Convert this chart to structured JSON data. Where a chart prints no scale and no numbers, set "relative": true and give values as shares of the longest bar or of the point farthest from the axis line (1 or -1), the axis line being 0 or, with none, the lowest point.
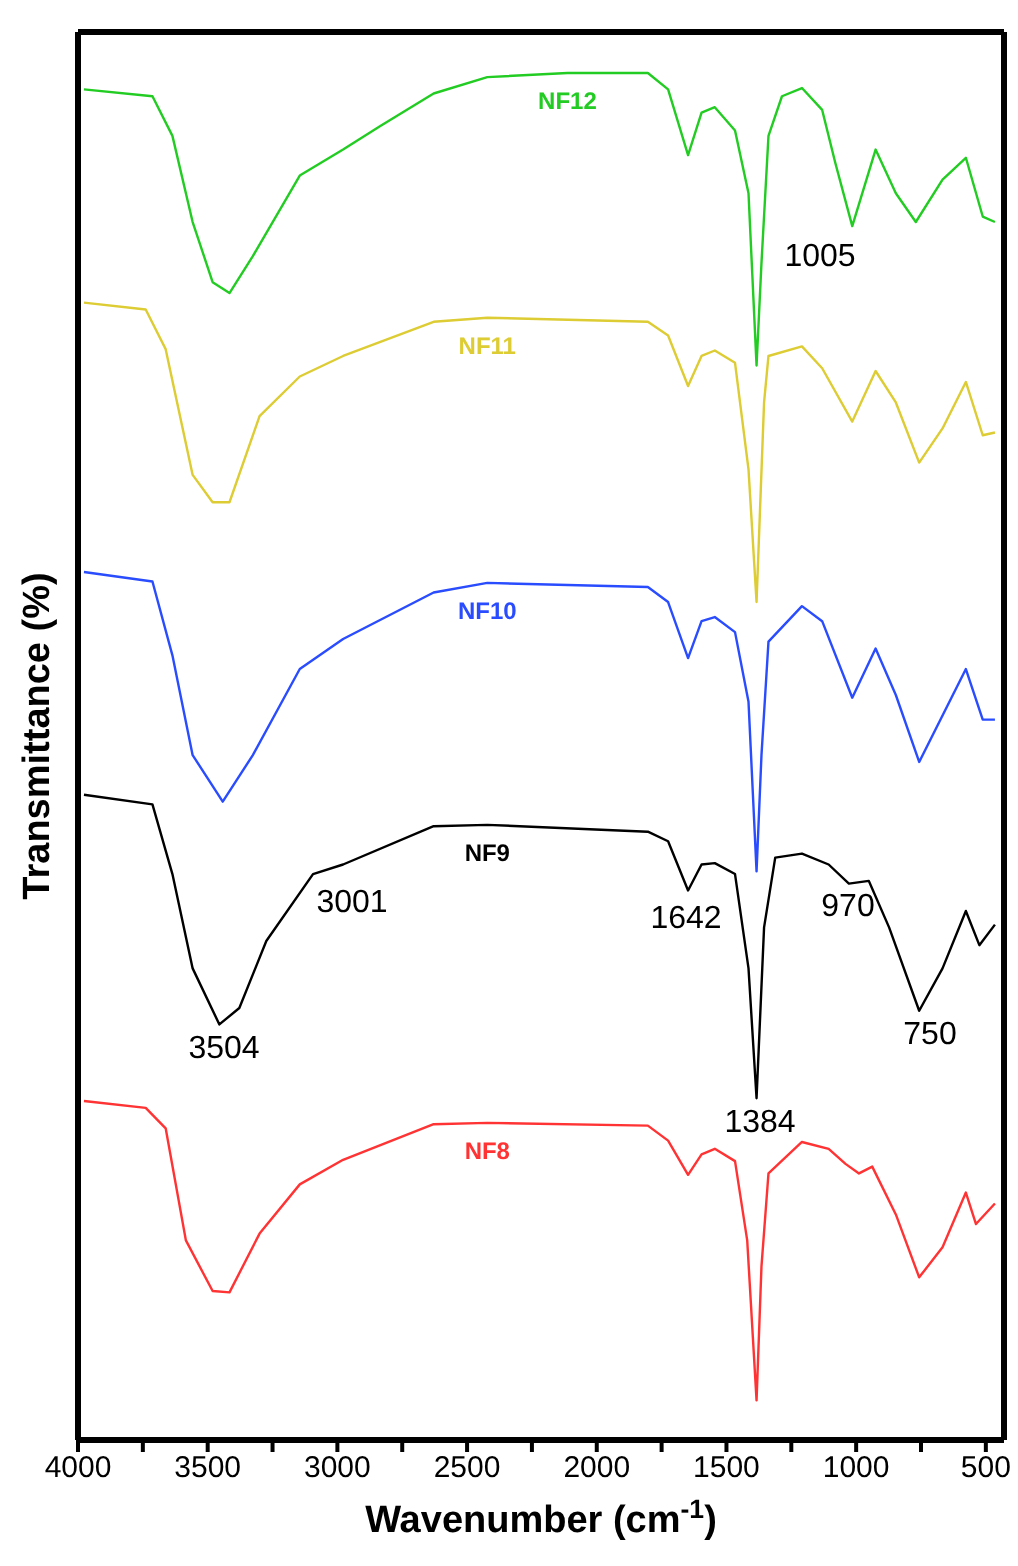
{
  "chart_data": {
    "type": "line",
    "relative": true,
    "xlabel": "Wavenumber (cm$^{-1}$)",
    "ylabel": "Transmittance (%)",
    "xlim": [
      4000,
      430
    ],
    "xticks": [
      4000,
      {
        "value": 3750,
        "label": null
      },
      3500,
      {
        "value": 3250,
        "label": null
      },
      3000,
      {
        "value": 2750,
        "label": null
      },
      2500,
      {
        "value": 2250,
        "label": null
      },
      2000,
      {
        "value": 1750,
        "label": null
      },
      1500,
      {
        "value": 1250,
        "label": null
      },
      1000,
      {
        "value": 750,
        "label": null
      },
      500
    ],
    "marker": "none",
    "line_style": "solid",
    "series": [
      {
        "name": "NF12",
        "color": "#22cc22",
        "x": [
          3977,
          3713,
          3636,
          3558,
          3481,
          3416,
          3326,
          3145,
          2978,
          2836,
          2629,
          2422,
          2113,
          1803,
          1725,
          1648,
          1596,
          1545,
          1467,
          1415,
          1384,
          1365,
          1338,
          1286,
          1209,
          1131,
          1080,
          1015,
          925,
          847,
          770,
          667,
          577,
          512,
          465
        ],
        "values": [
          0.988,
          0.983,
          0.954,
          0.891,
          0.847,
          0.839,
          0.866,
          0.925,
          0.944,
          0.961,
          0.985,
          0.997,
          1.0,
          1.0,
          0.988,
          0.94,
          0.971,
          0.975,
          0.958,
          0.912,
          0.786,
          0.861,
          0.954,
          0.983,
          0.989,
          0.973,
          0.934,
          0.888,
          0.944,
          0.912,
          0.891,
          0.922,
          0.938,
          0.895,
          0.891
        ]
      },
      {
        "name": "NF11",
        "color": "#ddcc33",
        "x": [
          3977,
          3739,
          3662,
          3558,
          3481,
          3416,
          3300,
          3145,
          2978,
          2629,
          2422,
          1803,
          1725,
          1648,
          1596,
          1545,
          1467,
          1415,
          1384,
          1355,
          1338,
          1209,
          1131,
          1015,
          925,
          847,
          757,
          667,
          577,
          512,
          465
        ],
        "values": [
          0.832,
          0.827,
          0.798,
          0.706,
          0.686,
          0.686,
          0.749,
          0.778,
          0.793,
          0.818,
          0.821,
          0.818,
          0.808,
          0.771,
          0.793,
          0.797,
          0.788,
          0.71,
          0.613,
          0.759,
          0.793,
          0.8,
          0.784,
          0.745,
          0.782,
          0.759,
          0.715,
          0.74,
          0.774,
          0.735,
          0.737
        ]
      },
      {
        "name": "NF10",
        "color": "#2a4cff",
        "x": [
          3977,
          3713,
          3636,
          3558,
          3442,
          3326,
          3145,
          2978,
          2629,
          2422,
          1803,
          1725,
          1648,
          1596,
          1545,
          1467,
          1415,
          1384,
          1365,
          1338,
          1209,
          1131,
          1015,
          925,
          847,
          757,
          667,
          577,
          512,
          465
        ],
        "values": [
          0.635,
          0.628,
          0.574,
          0.501,
          0.467,
          0.501,
          0.564,
          0.586,
          0.62,
          0.627,
          0.624,
          0.613,
          0.572,
          0.599,
          0.602,
          0.591,
          0.54,
          0.416,
          0.501,
          0.584,
          0.61,
          0.599,
          0.543,
          0.579,
          0.545,
          0.496,
          0.53,
          0.564,
          0.527,
          0.527
        ]
      },
      {
        "name": "NF9",
        "color": "#000000",
        "x": [
          3977,
          3713,
          3636,
          3558,
          3455,
          3378,
          3274,
          3094,
          2978,
          2629,
          2422,
          1803,
          1725,
          1648,
          1596,
          1545,
          1467,
          1415,
          1384,
          1355,
          1312,
          1209,
          1106,
          1028,
          951,
          873,
          757,
          667,
          577,
          525,
          465
        ],
        "values": [
          0.472,
          0.465,
          0.414,
          0.345,
          0.304,
          0.316,
          0.365,
          0.414,
          0.421,
          0.449,
          0.45,
          0.445,
          0.438,
          0.402,
          0.421,
          0.422,
          0.414,
          0.345,
          0.25,
          0.375,
          0.426,
          0.429,
          0.421,
          0.407,
          0.409,
          0.375,
          0.314,
          0.345,
          0.387,
          0.362,
          0.377
        ]
      },
      {
        "name": "NF8",
        "color": "#ff3333",
        "x": [
          3977,
          3739,
          3662,
          3584,
          3481,
          3416,
          3300,
          3145,
          2978,
          2629,
          2422,
          1803,
          1725,
          1648,
          1596,
          1545,
          1467,
          1420,
          1384,
          1365,
          1338,
          1209,
          1106,
          1041,
          989,
          938,
          847,
          757,
          667,
          577,
          538,
          465
        ],
        "values": [
          0.248,
          0.243,
          0.228,
          0.146,
          0.109,
          0.108,
          0.151,
          0.187,
          0.205,
          0.231,
          0.232,
          0.23,
          0.219,
          0.194,
          0.209,
          0.213,
          0.204,
          0.146,
          0.029,
          0.127,
          0.195,
          0.218,
          0.213,
          0.202,
          0.195,
          0.2,
          0.165,
          0.119,
          0.141,
          0.181,
          0.158,
          0.173
        ]
      }
    ],
    "annotations": [
      "1005",
      "3001",
      "1642",
      "970",
      "750",
      "3504",
      "1384"
    ]
  }
}
